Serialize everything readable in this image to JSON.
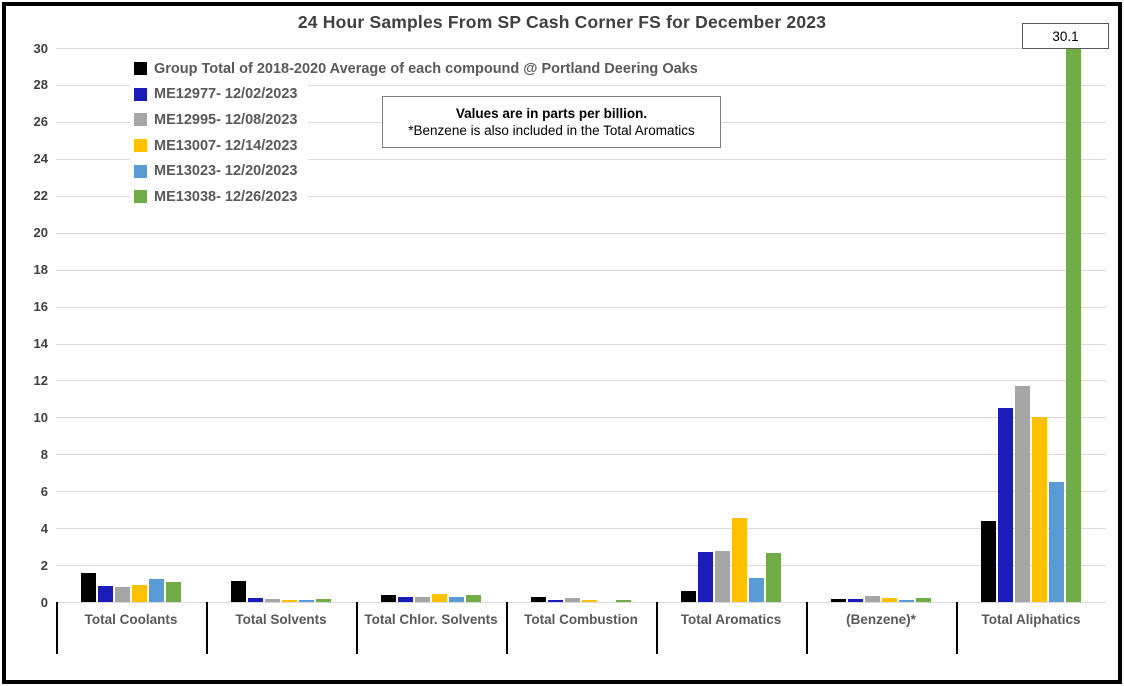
{
  "chart_data": {
    "type": "bar",
    "title": "24 Hour Samples From SP Cash Corner FS for December 2023",
    "units": "parts per billion",
    "categories": [
      "Total Coolants",
      "Total Solvents",
      "Total Chlor. Solvents",
      "Total Combustion",
      "Total Aromatics",
      "(Benzene)*",
      "Total Aliphatics"
    ],
    "series": [
      {
        "name": "Group Total of 2018-2020 Average of each compound @ Portland Deering Oaks",
        "color": "#000000",
        "values": [
          1.55,
          1.15,
          0.4,
          0.25,
          0.6,
          0.15,
          4.4
        ]
      },
      {
        "name": "ME12977- 12/02/2023",
        "color": "#1b1db8",
        "values": [
          0.85,
          0.2,
          0.3,
          0.1,
          2.7,
          0.15,
          10.5
        ]
      },
      {
        "name": "ME12995- 12/08/2023",
        "color": "#a6a6a6",
        "values": [
          0.8,
          0.15,
          0.25,
          0.2,
          2.75,
          0.35,
          11.7
        ]
      },
      {
        "name": "ME13007- 12/14/2023",
        "color": "#ffc000",
        "values": [
          0.95,
          0.1,
          0.45,
          0.1,
          4.55,
          0.2,
          10.0
        ]
      },
      {
        "name": "ME13023- 12/20/2023",
        "color": "#5b9bd5",
        "values": [
          1.25,
          0.1,
          0.25,
          0,
          1.3,
          0.1,
          6.5
        ]
      },
      {
        "name": "ME13038- 12/26/2023",
        "color": "#70ad47",
        "values": [
          1.1,
          0.15,
          0.4,
          0.1,
          2.65,
          0.2,
          30.1
        ]
      }
    ],
    "ylim": [
      0,
      30
    ],
    "ytick_step": 2,
    "grid": true,
    "legend_position": "top-left",
    "clipped_data_label": {
      "text": "30.1",
      "series": "ME13038- 12/26/2023",
      "category": "Total Aliphatics",
      "value": 30.1
    }
  },
  "note_box": {
    "line1": "Values are in parts per billion.",
    "line2": "*Benzene is also included in the Total Aromatics"
  },
  "data_label": {
    "text": "30.1"
  },
  "colors": {
    "gridline": "#d9d9d9",
    "title_text": "#404040",
    "axis_text": "#404040",
    "category_text": "#595959",
    "legend_text": "#595959",
    "frame_border": "#000000",
    "note_border": "#7f7f7f",
    "datalabel_border": "#595959"
  }
}
